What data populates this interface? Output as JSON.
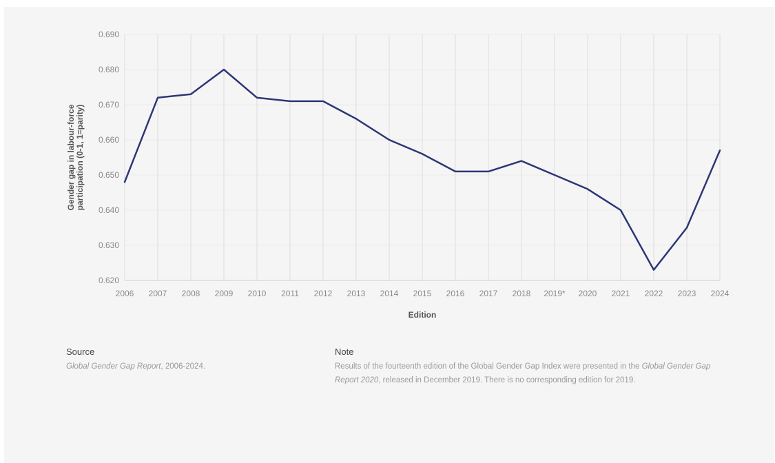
{
  "chart_data": {
    "type": "line",
    "xlabel": "Edition",
    "ylabel_lines": [
      "Gender gap in labour-force",
      "participation (0-1, 1=parity)"
    ],
    "categories": [
      "2006",
      "2007",
      "2008",
      "2009",
      "2010",
      "2011",
      "2012",
      "2013",
      "2014",
      "2015",
      "2016",
      "2017",
      "2018",
      "2019*",
      "2020",
      "2021",
      "2022",
      "2023",
      "2024"
    ],
    "series": [
      {
        "values": [
          0.648,
          0.672,
          0.673,
          0.68,
          0.672,
          0.671,
          0.671,
          0.666,
          0.66,
          0.656,
          0.651,
          0.651,
          0.654,
          0.65,
          0.646,
          0.64,
          0.623,
          0.635,
          0.657
        ]
      }
    ],
    "yticks": [
      "0.620",
      "0.630",
      "0.640",
      "0.650",
      "0.660",
      "0.670",
      "0.680",
      "0.690"
    ],
    "ylim": [
      0.62,
      0.69
    ],
    "grid": "vertical",
    "line_color": "#2d3675"
  },
  "source": {
    "heading": "Source",
    "title_italic": "Global Gender Gap Report",
    "rest": ", 2006-2024."
  },
  "note": {
    "heading": "Note",
    "part1": "Results of the fourteenth edition of the Global Gender Gap Index were presented in the ",
    "italic": "Global Gender Gap Report 2020",
    "part2": ", released in December 2019. There is no corresponding edition for 2019."
  }
}
